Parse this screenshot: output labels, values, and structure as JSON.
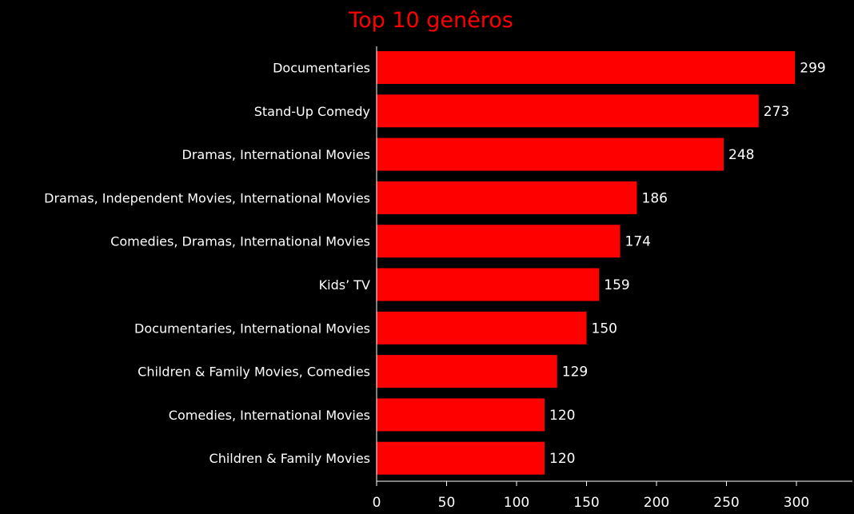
{
  "chart_data": {
    "type": "bar",
    "orientation": "horizontal",
    "title": "Top 10 genêros",
    "xlabel": "",
    "ylabel": "",
    "categories": [
      "Documentaries",
      "Stand-Up Comedy",
      "Dramas, International Movies",
      "Dramas, Independent Movies, International Movies",
      "Comedies, Dramas, International Movies",
      "Kids’ TV",
      "Documentaries, International Movies",
      "Children & Family Movies, Comedies",
      "Comedies, International Movies",
      "Children & Family Movies"
    ],
    "values": [
      299,
      273,
      248,
      186,
      174,
      159,
      150,
      129,
      120,
      120
    ],
    "xlim": [
      0,
      340
    ],
    "xticks": [
      0,
      50,
      100,
      150,
      200,
      250,
      300
    ],
    "grid": false,
    "legend": "none",
    "colors": {
      "background": "#000000",
      "bar": "#ff0000",
      "title": "#ff0000",
      "text": "#ffffff",
      "axis": "#ffffff"
    }
  }
}
